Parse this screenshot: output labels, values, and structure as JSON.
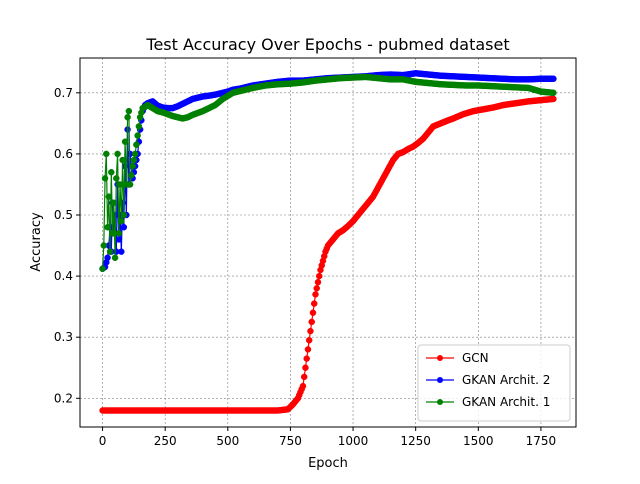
{
  "chart_data": {
    "type": "line",
    "title": "Test Accuracy Over Epochs - pubmed dataset",
    "xlabel": "Epoch",
    "ylabel": "Accuracy",
    "xlim": [
      -90,
      1890
    ],
    "ylim": [
      0.153,
      0.757
    ],
    "xticks": [
      0,
      250,
      500,
      750,
      1000,
      1250,
      1500,
      1750
    ],
    "yticks": [
      0.2,
      0.3,
      0.4,
      0.5,
      0.6,
      0.7
    ],
    "ytick_labels": [
      "0.2",
      "0.3",
      "0.4",
      "0.5",
      "0.6",
      "0.7"
    ],
    "grid": true,
    "legend_position": "lower-right",
    "series": [
      {
        "name": "GCN",
        "color": "#ff0000",
        "x": [
          0,
          100,
          200,
          300,
          400,
          500,
          600,
          700,
          740,
          760,
          780,
          800,
          810,
          820,
          830,
          840,
          850,
          860,
          870,
          880,
          890,
          900,
          920,
          940,
          960,
          980,
          1000,
          1020,
          1040,
          1060,
          1080,
          1100,
          1120,
          1140,
          1160,
          1180,
          1200,
          1220,
          1240,
          1260,
          1280,
          1300,
          1320,
          1350,
          1380,
          1400,
          1440,
          1480,
          1520,
          1560,
          1600,
          1650,
          1700,
          1750,
          1800
        ],
        "y": [
          0.18,
          0.18,
          0.18,
          0.18,
          0.18,
          0.18,
          0.18,
          0.18,
          0.182,
          0.19,
          0.2,
          0.22,
          0.25,
          0.28,
          0.31,
          0.34,
          0.37,
          0.39,
          0.41,
          0.425,
          0.44,
          0.45,
          0.46,
          0.47,
          0.475,
          0.482,
          0.49,
          0.5,
          0.51,
          0.52,
          0.53,
          0.545,
          0.56,
          0.575,
          0.59,
          0.6,
          0.603,
          0.608,
          0.612,
          0.618,
          0.625,
          0.635,
          0.645,
          0.65,
          0.655,
          0.658,
          0.665,
          0.67,
          0.673,
          0.676,
          0.68,
          0.683,
          0.686,
          0.688,
          0.69
        ]
      },
      {
        "name": "GKAN Archit. 2",
        "color": "#0000ff",
        "x": [
          0,
          10,
          20,
          25,
          30,
          35,
          40,
          45,
          50,
          55,
          60,
          65,
          70,
          75,
          80,
          85,
          90,
          95,
          100,
          105,
          110,
          120,
          130,
          140,
          150,
          160,
          170,
          180,
          200,
          220,
          240,
          260,
          280,
          300,
          320,
          340,
          360,
          380,
          400,
          420,
          450,
          480,
          500,
          520,
          550,
          580,
          600,
          650,
          700,
          750,
          800,
          850,
          900,
          950,
          1000,
          1050,
          1100,
          1150,
          1200,
          1250,
          1300,
          1350,
          1400,
          1450,
          1500,
          1550,
          1600,
          1650,
          1700,
          1750,
          1800
        ],
        "y": [
          0.412,
          0.415,
          0.43,
          0.45,
          0.48,
          0.44,
          0.52,
          0.47,
          0.5,
          0.44,
          0.55,
          0.46,
          0.5,
          0.44,
          0.52,
          0.48,
          0.58,
          0.5,
          0.64,
          0.55,
          0.6,
          0.56,
          0.58,
          0.6,
          0.64,
          0.67,
          0.68,
          0.683,
          0.686,
          0.679,
          0.676,
          0.675,
          0.675,
          0.678,
          0.682,
          0.686,
          0.69,
          0.692,
          0.694,
          0.695,
          0.697,
          0.7,
          0.702,
          0.705,
          0.707,
          0.71,
          0.712,
          0.715,
          0.718,
          0.72,
          0.72,
          0.722,
          0.724,
          0.725,
          0.726,
          0.727,
          0.729,
          0.73,
          0.729,
          0.732,
          0.73,
          0.728,
          0.727,
          0.726,
          0.725,
          0.724,
          0.723,
          0.722,
          0.722,
          0.723,
          0.723
        ]
      },
      {
        "name": "GKAN Archit. 1",
        "color": "#008000",
        "x": [
          0,
          5,
          10,
          15,
          20,
          25,
          30,
          35,
          40,
          45,
          50,
          55,
          60,
          65,
          70,
          75,
          80,
          85,
          90,
          95,
          100,
          105,
          110,
          120,
          130,
          140,
          150,
          160,
          170,
          180,
          200,
          220,
          240,
          260,
          280,
          300,
          320,
          340,
          360,
          380,
          400,
          420,
          450,
          480,
          500,
          520,
          550,
          580,
          600,
          650,
          700,
          750,
          800,
          850,
          900,
          950,
          1000,
          1050,
          1100,
          1150,
          1200,
          1250,
          1300,
          1350,
          1400,
          1450,
          1500,
          1550,
          1600,
          1650,
          1700,
          1750,
          1800
        ],
        "y": [
          0.412,
          0.45,
          0.56,
          0.6,
          0.48,
          0.53,
          0.44,
          0.57,
          0.47,
          0.52,
          0.43,
          0.56,
          0.6,
          0.47,
          0.55,
          0.49,
          0.59,
          0.5,
          0.62,
          0.55,
          0.66,
          0.67,
          0.55,
          0.58,
          0.6,
          0.63,
          0.66,
          0.675,
          0.677,
          0.68,
          0.675,
          0.67,
          0.668,
          0.665,
          0.662,
          0.66,
          0.658,
          0.66,
          0.664,
          0.667,
          0.67,
          0.674,
          0.68,
          0.69,
          0.695,
          0.7,
          0.703,
          0.706,
          0.708,
          0.712,
          0.714,
          0.715,
          0.717,
          0.72,
          0.722,
          0.724,
          0.725,
          0.726,
          0.724,
          0.722,
          0.722,
          0.718,
          0.716,
          0.714,
          0.713,
          0.712,
          0.712,
          0.711,
          0.71,
          0.709,
          0.708,
          0.702,
          0.7
        ]
      }
    ]
  }
}
